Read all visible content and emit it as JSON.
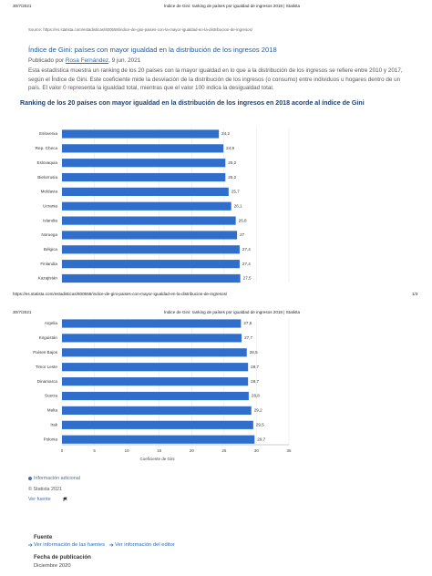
{
  "page1": {
    "date": "30/7/2021",
    "header_title": "Índice de Gini: ranking de países por igualdad de ingresos 2018 | Statista",
    "source": "Source: https://es.statista.com/estadisticas/600558/indice-de-gini-paises-con-la-mayor-igualdad-en-la-distribucion-de-ingresos/",
    "title": "Índice de Gini: países con mayor igualdad en la distribución de los ingresos 2018",
    "byline": {
      "prefix": "Publicado por",
      "author": "Rosa Fernández",
      "date": ", 9 jun. 2021"
    },
    "description": "Esta estadística muestra un ranking de los 20 países con la mayor igualdad en lo que a la distribución de los ingresos se refiere entre 2010 y 2017, según el Índice de Gini. Este coeficiente mide la desviación de la distribución de los ingresos (o consumo) entre individuos u hogares dentro de un país. El valor 0 representa la igualdad total, mientras que el valor 100 indica la desigualdad total.",
    "chart_title": "Ranking de los 20 países con mayor igualdad en la distribución de los ingresos en 2018 acorde al índice de Gini",
    "footer_url": "https://es.statista.com/estadisticas/600558/indice-de-gini-paises-con-mayor-igualdad-en-la-distribucion-de-ingresos/",
    "page_number": "1/3"
  },
  "chart": {
    "type": "bar",
    "orientation": "horizontal",
    "categories": [
      "Eslovenia",
      "Rep. Checa",
      "Eslovaquia",
      "Bielorrusia",
      "Moldavia",
      "Ucrania",
      "Islandia",
      "Noruega",
      "Bélgica",
      "Finlandia",
      "Kazajistán",
      "Argelia",
      "Kirguistán",
      "Países Bajos",
      "Timor Leste",
      "Dinamarca",
      "Suecia",
      "Malta",
      "Irak",
      "Polonia"
    ],
    "values": [
      24.2,
      24.9,
      25.2,
      25.2,
      25.7,
      26.1,
      26.8,
      27,
      27.4,
      27.4,
      27.5,
      27.6,
      27.7,
      28.5,
      28.7,
      28.7,
      28.8,
      29.2,
      29.5,
      29.7
    ],
    "value_labels": [
      "24,2",
      "24,9",
      "25,2",
      "25,2",
      "25,7",
      "26,1",
      "26,8",
      "27",
      "27,4",
      "27,4",
      "27,5",
      "27,6",
      "27,7",
      "28,5",
      "28,7",
      "28,7",
      "28,8",
      "29,2",
      "29,5",
      "29,7"
    ],
    "color": "#2f6fcb",
    "xlim": [
      0,
      35
    ],
    "xticks": [
      0,
      5,
      10,
      15,
      20,
      25,
      30,
      35
    ],
    "xlabel": "Coeficiente de Gini",
    "grid": true
  },
  "page2": {
    "date": "30/7/2021",
    "header_title": "Índice de Gini: ranking de países por igualdad de ingresos 2018 | Statista",
    "additional_info": "Información adicional",
    "copyright": "© Statista 2021",
    "see_source": "Ver fuente",
    "source_heading": "Fuente",
    "source_link1": "Ver información de las fuentes",
    "source_link2": "Ver información del editor",
    "pub_date_heading": "Fecha de publicación",
    "pub_date": "Diciembre 2020"
  }
}
